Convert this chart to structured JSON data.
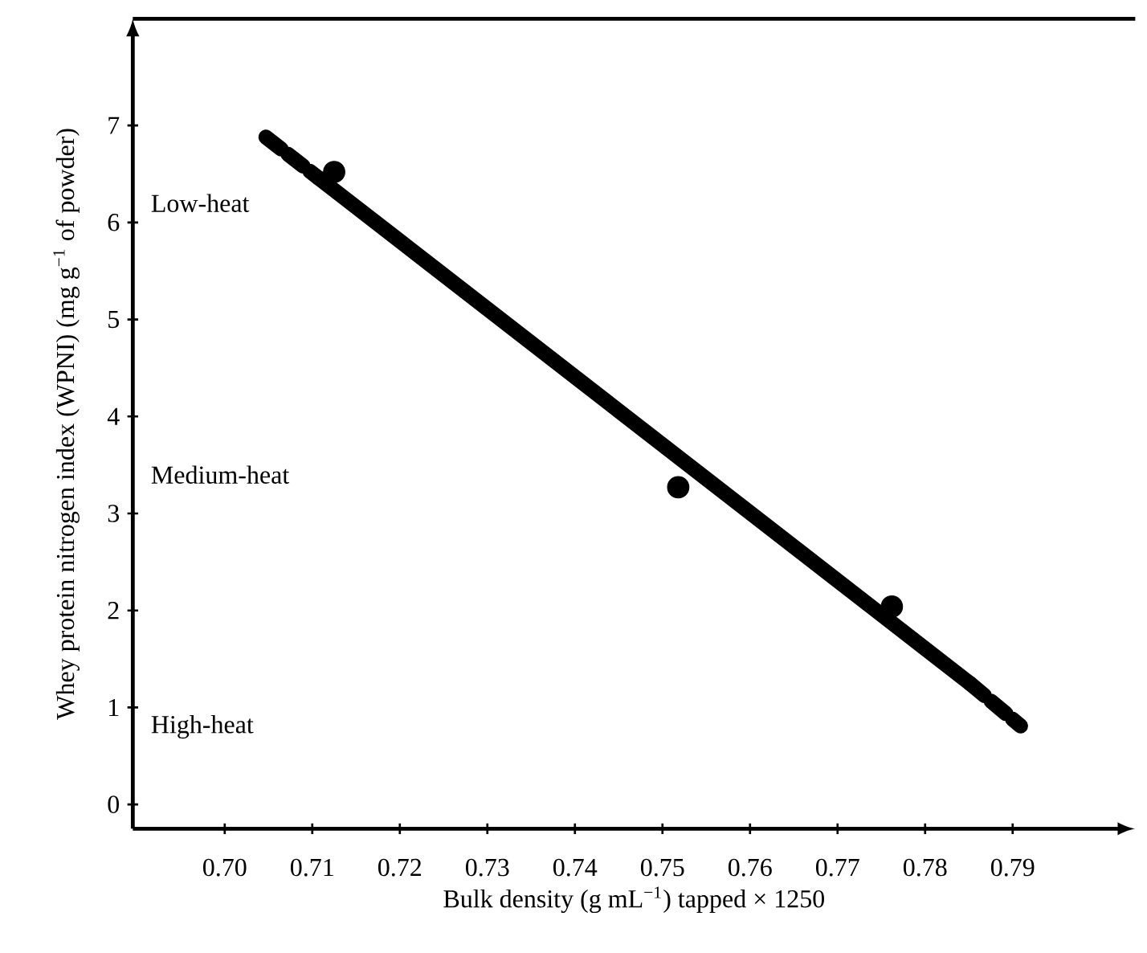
{
  "chart_data": {
    "type": "scatter",
    "xlabel": "Bulk density (g mL$^{−1}$) tapped × 1250",
    "ylabel": "Whey protein nitrogen index (WPNI) (mg g$^{−1}$ of powder)",
    "annotations": [
      "Low-heat",
      "Medium-heat",
      "High-heat"
    ],
    "x": [
      0.7125,
      0.7518,
      0.7762
    ],
    "series": [
      {
        "color": "#000000",
        "values": [
          6.52,
          3.27,
          2.04
        ]
      },
      {
        "type": "line",
        "color": "#000000",
        "line_style": "dashed",
        "marker": "none",
        "x": [
          0.7047,
          0.7107
        ],
        "values": [
          6.88,
          6.46
        ]
      },
      {
        "type": "line",
        "color": "#000000",
        "line_style": "solid",
        "marker": "none",
        "x": [
          0.7107,
          0.7851
        ],
        "values": [
          6.46,
          1.25
        ]
      },
      {
        "type": "line",
        "color": "#000000",
        "line_style": "dashed",
        "marker": "none",
        "x": [
          0.7851,
          0.7909
        ],
        "values": [
          1.25,
          0.81
        ]
      }
    ],
    "xlim": [
      0.6895,
      0.804
    ],
    "ylim": [
      -0.25,
      8.1
    ],
    "xticks": [
      {
        "value": 0.7,
        "label": "0.70"
      },
      0.71,
      0.72,
      0.73,
      0.74,
      0.75,
      0.76,
      0.77,
      0.78,
      0.79
    ],
    "yticks": [
      0,
      1,
      2,
      3,
      4,
      5,
      6,
      7
    ],
    "grid": false
  }
}
